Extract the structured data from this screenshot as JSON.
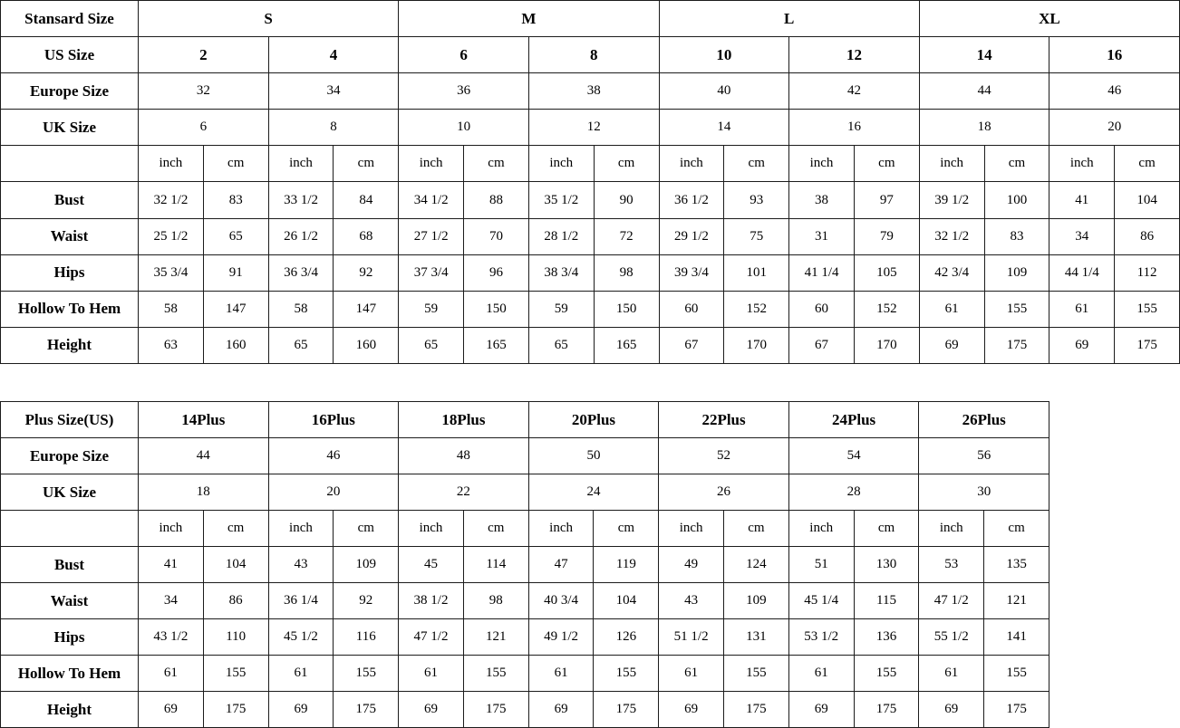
{
  "page": {
    "background_color": "#ffffff",
    "text_color": "#000000",
    "border_color": "#1c1c1c"
  },
  "chart_data": [
    {
      "type": "table",
      "name": "standard-size-chart",
      "rows": [
        [
          {
            "t": "Stansard Size",
            "s": 1,
            "b": 1
          },
          {
            "t": "S",
            "s": 4,
            "b": 1
          },
          {
            "t": "M",
            "s": 4,
            "b": 1
          },
          {
            "t": "L",
            "s": 4,
            "b": 1
          },
          {
            "t": "XL",
            "s": 4,
            "b": 1
          }
        ],
        [
          {
            "t": "US Size",
            "s": 1,
            "b": 1
          },
          {
            "t": "2",
            "s": 2,
            "b": 1
          },
          {
            "t": "4",
            "s": 2,
            "b": 1
          },
          {
            "t": "6",
            "s": 2,
            "b": 1
          },
          {
            "t": "8",
            "s": 2,
            "b": 1
          },
          {
            "t": "10",
            "s": 2,
            "b": 1
          },
          {
            "t": "12",
            "s": 2,
            "b": 1
          },
          {
            "t": "14",
            "s": 2,
            "b": 1
          },
          {
            "t": "16",
            "s": 2,
            "b": 1
          }
        ],
        [
          {
            "t": "Europe Size",
            "s": 1,
            "b": 1
          },
          {
            "t": "32",
            "s": 2
          },
          {
            "t": "34",
            "s": 2
          },
          {
            "t": "36",
            "s": 2
          },
          {
            "t": "38",
            "s": 2
          },
          {
            "t": "40",
            "s": 2
          },
          {
            "t": "42",
            "s": 2
          },
          {
            "t": "44",
            "s": 2
          },
          {
            "t": "46",
            "s": 2
          }
        ],
        [
          {
            "t": "UK Size",
            "s": 1,
            "b": 1
          },
          {
            "t": "6",
            "s": 2
          },
          {
            "t": "8",
            "s": 2
          },
          {
            "t": "10",
            "s": 2
          },
          {
            "t": "12",
            "s": 2
          },
          {
            "t": "14",
            "s": 2
          },
          {
            "t": "16",
            "s": 2
          },
          {
            "t": "18",
            "s": 2
          },
          {
            "t": "20",
            "s": 2
          }
        ],
        [
          {
            "t": ""
          },
          "inch",
          "cm",
          "inch",
          "cm",
          "inch",
          "cm",
          "inch",
          "cm",
          "inch",
          "cm",
          "inch",
          "cm",
          "inch",
          "cm",
          "inch",
          "cm"
        ],
        [
          {
            "t": "Bust",
            "b": 1
          },
          "32 1/2",
          "83",
          "33 1/2",
          "84",
          "34 1/2",
          "88",
          "35 1/2",
          "90",
          "36 1/2",
          "93",
          "38",
          "97",
          "39 1/2",
          "100",
          "41",
          "104"
        ],
        [
          {
            "t": "Waist",
            "b": 1
          },
          "25 1/2",
          "65",
          "26 1/2",
          "68",
          "27 1/2",
          "70",
          "28 1/2",
          "72",
          "29 1/2",
          "75",
          "31",
          "79",
          "32 1/2",
          "83",
          "34",
          "86"
        ],
        [
          {
            "t": "Hips",
            "b": 1
          },
          "35 3/4",
          "91",
          "36 3/4",
          "92",
          "37 3/4",
          "96",
          "38 3/4",
          "98",
          "39 3/4",
          "101",
          "41 1/4",
          "105",
          "42 3/4",
          "109",
          "44 1/4",
          "112"
        ],
        [
          {
            "t": "Hollow To Hem",
            "b": 1
          },
          "58",
          "147",
          "58",
          "147",
          "59",
          "150",
          "59",
          "150",
          "60",
          "152",
          "60",
          "152",
          "61",
          "155",
          "61",
          "155"
        ],
        [
          {
            "t": "Height",
            "b": 1
          },
          "63",
          "160",
          "65",
          "160",
          "65",
          "165",
          "65",
          "165",
          "67",
          "170",
          "67",
          "170",
          "69",
          "175",
          "69",
          "175"
        ]
      ]
    },
    {
      "type": "table",
      "name": "plus-size-chart",
      "rows": [
        [
          {
            "t": "Plus Size(US)",
            "s": 1,
            "b": 1
          },
          {
            "t": "14Plus",
            "s": 2,
            "b": 1
          },
          {
            "t": "16Plus",
            "s": 2,
            "b": 1
          },
          {
            "t": "18Plus",
            "s": 2,
            "b": 1
          },
          {
            "t": "20Plus",
            "s": 2,
            "b": 1
          },
          {
            "t": "22Plus",
            "s": 2,
            "b": 1
          },
          {
            "t": "24Plus",
            "s": 2,
            "b": 1
          },
          {
            "t": "26Plus",
            "s": 2,
            "b": 1
          }
        ],
        [
          {
            "t": "Europe Size",
            "s": 1,
            "b": 1
          },
          {
            "t": "44",
            "s": 2
          },
          {
            "t": "46",
            "s": 2
          },
          {
            "t": "48",
            "s": 2
          },
          {
            "t": "50",
            "s": 2
          },
          {
            "t": "52",
            "s": 2
          },
          {
            "t": "54",
            "s": 2
          },
          {
            "t": "56",
            "s": 2
          }
        ],
        [
          {
            "t": "UK Size",
            "s": 1,
            "b": 1
          },
          {
            "t": "18",
            "s": 2
          },
          {
            "t": "20",
            "s": 2
          },
          {
            "t": "22",
            "s": 2
          },
          {
            "t": "24",
            "s": 2
          },
          {
            "t": "26",
            "s": 2
          },
          {
            "t": "28",
            "s": 2
          },
          {
            "t": "30",
            "s": 2
          }
        ],
        [
          {
            "t": ""
          },
          "inch",
          "cm",
          "inch",
          "cm",
          "inch",
          "cm",
          "inch",
          "cm",
          "inch",
          "cm",
          "inch",
          "cm",
          "inch",
          "cm"
        ],
        [
          {
            "t": "Bust",
            "b": 1
          },
          "41",
          "104",
          "43",
          "109",
          "45",
          "114",
          "47",
          "119",
          "49",
          "124",
          "51",
          "130",
          "53",
          "135"
        ],
        [
          {
            "t": "Waist",
            "b": 1
          },
          "34",
          "86",
          "36 1/4",
          "92",
          "38 1/2",
          "98",
          "40 3/4",
          "104",
          "43",
          "109",
          "45 1/4",
          "115",
          "47 1/2",
          "121"
        ],
        [
          {
            "t": "Hips",
            "b": 1
          },
          "43 1/2",
          "110",
          "45 1/2",
          "116",
          "47 1/2",
          "121",
          "49 1/2",
          "126",
          "51 1/2",
          "131",
          "53 1/2",
          "136",
          "55 1/2",
          "141"
        ],
        [
          {
            "t": "Hollow To Hem",
            "b": 1
          },
          "61",
          "155",
          "61",
          "155",
          "61",
          "155",
          "61",
          "155",
          "61",
          "155",
          "61",
          "155",
          "61",
          "155"
        ],
        [
          {
            "t": "Height",
            "b": 1
          },
          "69",
          "175",
          "69",
          "175",
          "69",
          "175",
          "69",
          "175",
          "69",
          "175",
          "69",
          "175",
          "69",
          "175"
        ]
      ]
    }
  ]
}
